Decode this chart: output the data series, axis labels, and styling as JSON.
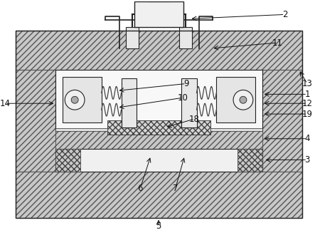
{
  "bg_color": "#ffffff",
  "figsize": [
    4.43,
    3.37
  ],
  "dpi": 100,
  "hatch_fc": "#c8c8c8",
  "hatch_ec": "#555555",
  "inner_fc": "#f5f5f5",
  "plate_fc": "#e8e8e8",
  "spring_color": "#444444"
}
